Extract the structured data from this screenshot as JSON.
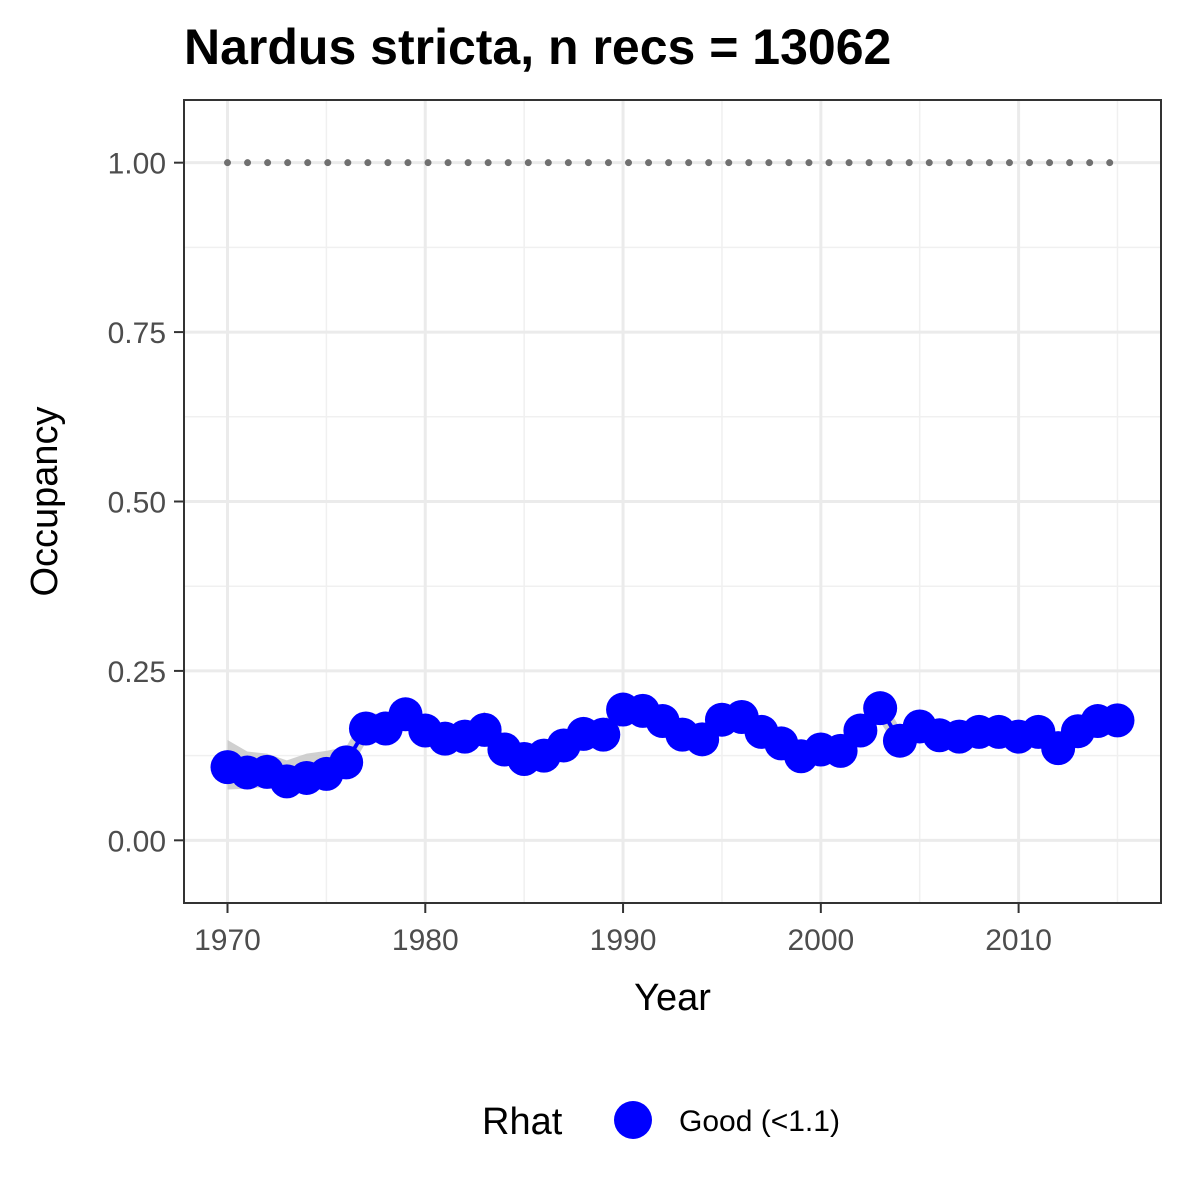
{
  "chart_data": {
    "type": "line",
    "title": "Nardus stricta, n recs = 13062",
    "xlabel": "Year",
    "ylabel": "Occupancy",
    "xlim": [
      1967.8,
      2017.2
    ],
    "ylim": [
      -0.0925,
      1.0925
    ],
    "x_ticks": [
      1970,
      1980,
      1990,
      2000,
      2010
    ],
    "x_tick_labels": [
      "1970",
      "1980",
      "1990",
      "2000",
      "2010"
    ],
    "y_ticks": [
      0,
      0.25,
      0.5,
      0.75,
      1
    ],
    "y_tick_labels": [
      "0.00",
      "0.25",
      "0.50",
      "0.75",
      "1.00"
    ],
    "grid": true,
    "legend_position": "bottom",
    "legend": {
      "title": "Rhat",
      "entries": [
        {
          "label": "Good (<1.1)",
          "color": "#0000ff"
        }
      ]
    },
    "x": [
      1970,
      1971,
      1972,
      1973,
      1974,
      1975,
      1976,
      1977,
      1978,
      1979,
      1980,
      1981,
      1982,
      1983,
      1984,
      1985,
      1986,
      1987,
      1988,
      1989,
      1990,
      1991,
      1992,
      1993,
      1994,
      1995,
      1996,
      1997,
      1998,
      1999,
      2000,
      2001,
      2002,
      2003,
      2004,
      2005,
      2006,
      2007,
      2008,
      2009,
      2010,
      2011,
      2012,
      2013,
      2014,
      2015
    ],
    "series": [
      {
        "name": "Good (<1.1)",
        "color": "#0000ff",
        "values": [
          0.108,
          0.1,
          0.101,
          0.087,
          0.092,
          0.098,
          0.115,
          0.165,
          0.165,
          0.186,
          0.162,
          0.15,
          0.153,
          0.163,
          0.134,
          0.12,
          0.125,
          0.14,
          0.157,
          0.156,
          0.193,
          0.191,
          0.176,
          0.156,
          0.149,
          0.178,
          0.182,
          0.16,
          0.143,
          0.124,
          0.134,
          0.132,
          0.162,
          0.195,
          0.147,
          0.168,
          0.155,
          0.153,
          0.16,
          0.16,
          0.153,
          0.16,
          0.136,
          0.161,
          0.176,
          0.177
        ],
        "lower": [
          0.075,
          0.076,
          0.079,
          0.067,
          0.072,
          0.078,
          0.094,
          0.145,
          0.147,
          0.165,
          0.143,
          0.133,
          0.136,
          0.144,
          0.116,
          0.101,
          0.106,
          0.122,
          0.138,
          0.138,
          0.173,
          0.171,
          0.157,
          0.138,
          0.131,
          0.159,
          0.163,
          0.141,
          0.125,
          0.106,
          0.116,
          0.114,
          0.143,
          0.175,
          0.129,
          0.149,
          0.137,
          0.135,
          0.142,
          0.142,
          0.135,
          0.142,
          0.118,
          0.143,
          0.158,
          0.159
        ],
        "upper": [
          0.148,
          0.131,
          0.128,
          0.118,
          0.128,
          0.132,
          0.138,
          0.188,
          0.186,
          0.21,
          0.183,
          0.17,
          0.172,
          0.19,
          0.155,
          0.141,
          0.146,
          0.16,
          0.177,
          0.176,
          0.213,
          0.21,
          0.196,
          0.176,
          0.168,
          0.198,
          0.201,
          0.18,
          0.163,
          0.144,
          0.153,
          0.151,
          0.181,
          0.214,
          0.166,
          0.187,
          0.174,
          0.172,
          0.179,
          0.179,
          0.172,
          0.18,
          0.155,
          0.18,
          0.195,
          0.196
        ]
      }
    ],
    "reference_line": {
      "y": 1,
      "style": "dotted",
      "color": "#707070",
      "x_from": 1970,
      "x_to": 2015
    },
    "ribbon_color": "#c8c8c8"
  }
}
